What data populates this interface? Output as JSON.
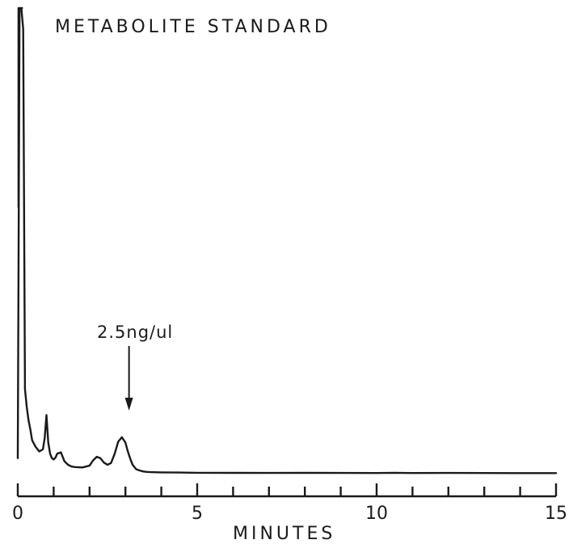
{
  "chart_data": {
    "type": "line",
    "title": "METABOLITE STANDARD",
    "xlabel": "MINUTES",
    "ylabel": "",
    "xlim": [
      0,
      15
    ],
    "x_ticks": [
      0,
      5,
      10,
      15
    ],
    "x_tick_labels": [
      "0",
      "5",
      "10",
      "15"
    ],
    "x_minor_step": 1,
    "grid": false,
    "legend": "none",
    "series": [
      {
        "x": [
          0.0,
          0.05,
          0.1,
          0.15,
          0.2,
          0.25,
          0.3,
          0.35,
          0.4,
          0.5,
          0.6,
          0.7,
          0.75,
          0.8,
          0.85,
          0.9,
          0.95,
          1.0,
          1.05,
          1.1,
          1.2,
          1.3,
          1.4,
          1.5,
          1.6,
          1.8,
          2.0,
          2.1,
          2.2,
          2.3,
          2.4,
          2.5,
          2.6,
          2.7,
          2.8,
          2.9,
          3.0,
          3.05,
          3.1,
          3.15,
          3.2,
          3.3,
          3.4,
          3.5,
          3.6,
          3.7,
          3.8,
          4.0,
          4.5,
          5.0,
          6.0,
          7.0,
          8.0,
          9.0,
          10.0,
          10.5,
          11.0,
          12.0,
          13.0,
          14.0,
          15.0
        ],
        "y": [
          0.35,
          18,
          32,
          10,
          1.9,
          1.5,
          1.2,
          1.0,
          0.75,
          0.6,
          0.5,
          0.55,
          0.8,
          1.32,
          0.7,
          0.45,
          0.35,
          0.32,
          0.36,
          0.45,
          0.48,
          0.28,
          0.2,
          0.16,
          0.15,
          0.14,
          0.18,
          0.3,
          0.38,
          0.35,
          0.25,
          0.2,
          0.24,
          0.45,
          0.72,
          0.82,
          0.7,
          0.55,
          0.42,
          0.3,
          0.2,
          0.1,
          0.07,
          0.05,
          0.04,
          0.035,
          0.032,
          0.03,
          0.025,
          0.02,
          0.018,
          0.017,
          0.018,
          0.016,
          0.015,
          0.02,
          0.015,
          0.016,
          0.014,
          0.012,
          0.012
        ]
      }
    ],
    "annotations": [
      {
        "text": "2.5ng/ul",
        "x": 3.1
      }
    ]
  },
  "colors": {
    "ink": "#1a1a1a",
    "background": "#ffffff"
  }
}
